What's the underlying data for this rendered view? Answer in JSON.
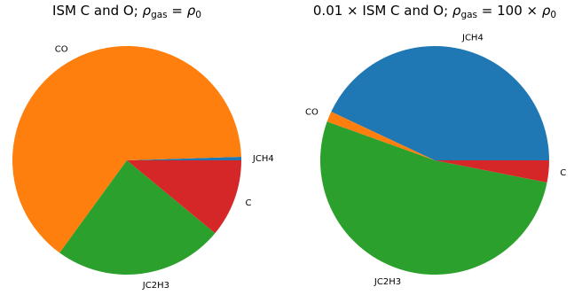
{
  "chart_data": [
    {
      "type": "pie",
      "title": "ISM C and O; ρgas = ρ0",
      "title_parts": {
        "prefix": "ISM C and O; ",
        "var_base": "ρ",
        "var_sub": "gas",
        "equals": " = ",
        "rhs_base": "ρ",
        "rhs_sub": "0"
      },
      "start_angle_deg": 0,
      "direction": "counterclockwise",
      "slices": [
        {
          "label": "JCH4",
          "value": 0.5,
          "color": "#1f77b4"
        },
        {
          "label": "CO",
          "value": 64.5,
          "color": "#ff7f0e"
        },
        {
          "label": "JC2H3",
          "value": 24.0,
          "color": "#2ca02c"
        },
        {
          "label": "C",
          "value": 11.0,
          "color": "#d62728"
        }
      ]
    },
    {
      "type": "pie",
      "title": "0.01 × ISM C and O; ρgas = 100 × ρ0",
      "title_parts": {
        "prefix": "0.01 ×  ISM C and O; ",
        "var_base": "ρ",
        "var_sub": "gas",
        "equals": " = 100 × ",
        "rhs_base": "ρ",
        "rhs_sub": "0"
      },
      "start_angle_deg": 0,
      "direction": "counterclockwise",
      "slices": [
        {
          "label": "JCH4",
          "value": 43.0,
          "color": "#1f77b4"
        },
        {
          "label": "CO",
          "value": 1.5,
          "color": "#ff7f0e"
        },
        {
          "label": "JC2H3",
          "value": 52.4,
          "color": "#2ca02c"
        },
        {
          "label": "C",
          "value": 3.1,
          "color": "#d62728"
        }
      ]
    }
  ]
}
